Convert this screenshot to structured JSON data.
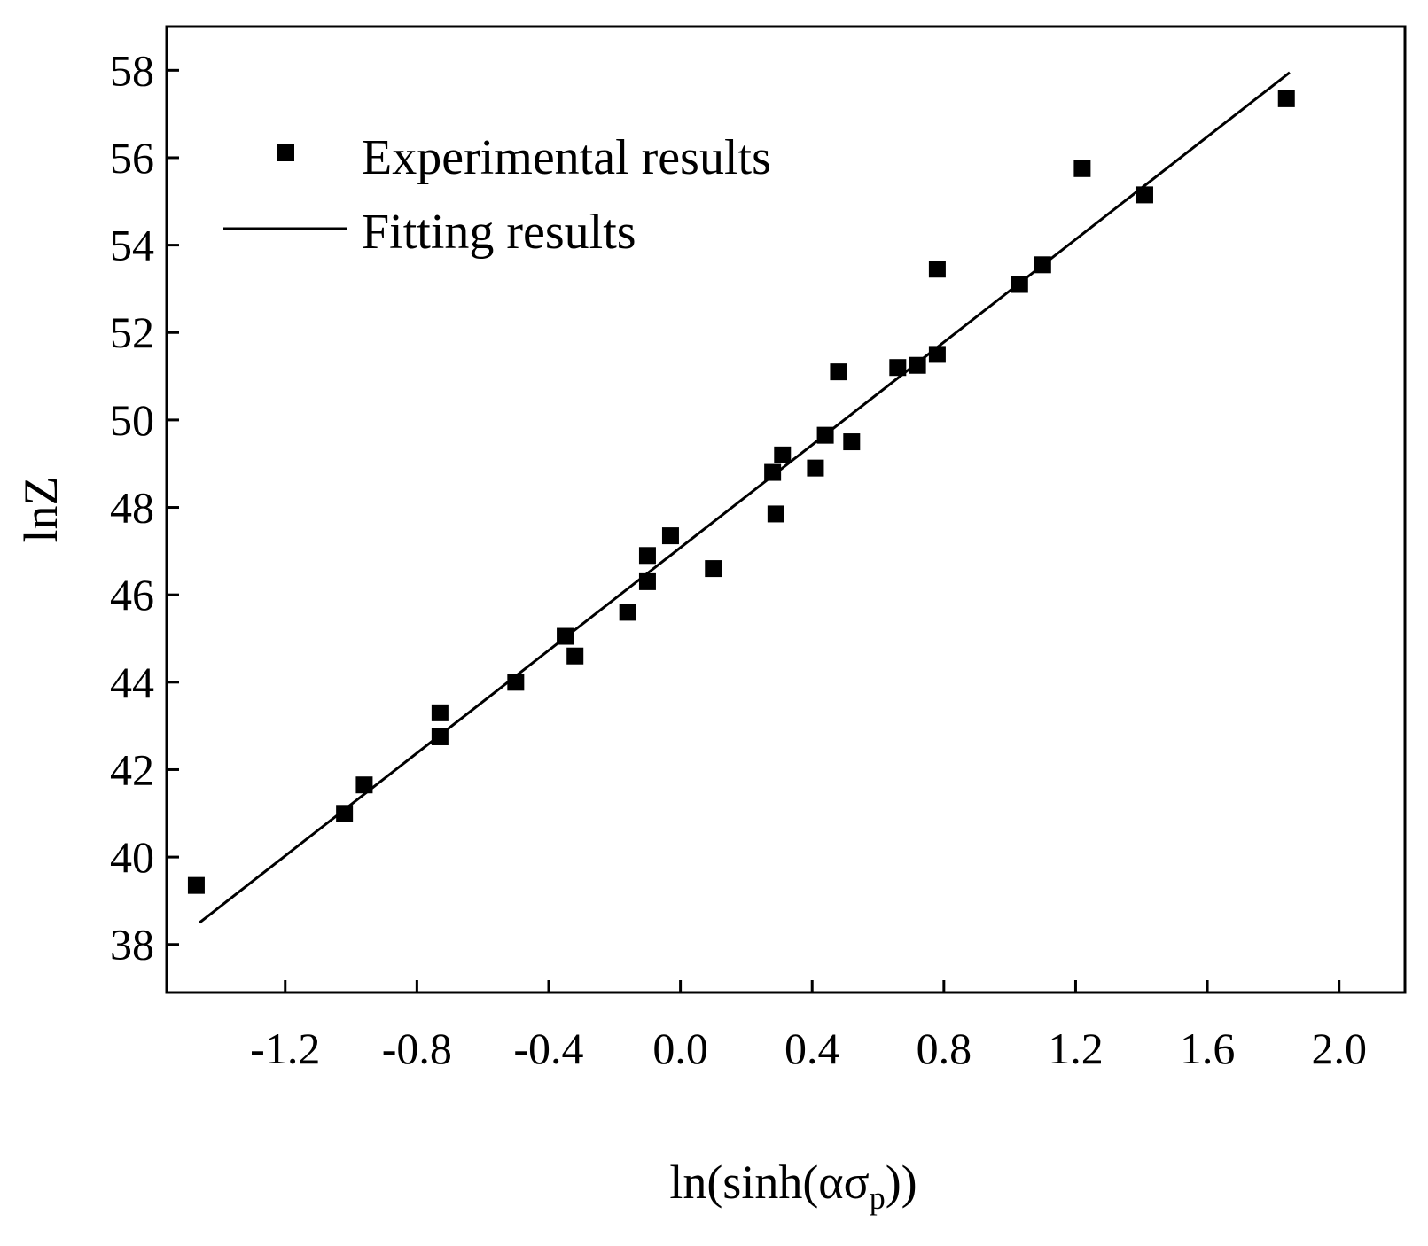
{
  "chart_data": {
    "type": "scatter",
    "title": "",
    "xlabel": "ln(sinh(ασ",
    "xlabel_subscript": "p",
    "xlabel_suffix": "))",
    "ylabel": "lnZ",
    "xlim": [
      -1.56,
      2.2
    ],
    "ylim": [
      36.9,
      59.0
    ],
    "x_ticks": [
      "-1.2",
      "-0.8",
      "-0.4",
      "0.0",
      "0.4",
      "0.8",
      "1.2",
      "1.6",
      "2.0"
    ],
    "y_ticks": [
      "38",
      "40",
      "42",
      "44",
      "46",
      "48",
      "50",
      "52",
      "54",
      "56",
      "58"
    ],
    "legend_position": "top-left",
    "series": [
      {
        "name": "Experimental results",
        "kind": "scatter",
        "marker": "square",
        "points": [
          [
            -1.47,
            39.35
          ],
          [
            -1.02,
            41.0
          ],
          [
            -0.96,
            41.65
          ],
          [
            -0.73,
            43.3
          ],
          [
            -0.73,
            42.75
          ],
          [
            -0.5,
            44.0
          ],
          [
            -0.35,
            45.05
          ],
          [
            -0.32,
            44.6
          ],
          [
            -0.16,
            45.6
          ],
          [
            -0.1,
            46.9
          ],
          [
            -0.1,
            46.3
          ],
          [
            -0.03,
            47.35
          ],
          [
            0.1,
            46.6
          ],
          [
            0.28,
            48.8
          ],
          [
            0.29,
            47.85
          ],
          [
            0.31,
            49.2
          ],
          [
            0.41,
            48.9
          ],
          [
            0.44,
            49.65
          ],
          [
            0.48,
            51.1
          ],
          [
            0.52,
            49.5
          ],
          [
            0.66,
            51.2
          ],
          [
            0.72,
            51.25
          ],
          [
            0.78,
            53.45
          ],
          [
            0.78,
            51.5
          ],
          [
            1.03,
            53.1
          ],
          [
            1.1,
            53.55
          ],
          [
            1.22,
            55.75
          ],
          [
            1.41,
            55.15
          ],
          [
            1.84,
            57.35
          ]
        ]
      },
      {
        "name": "Fitting results",
        "kind": "line",
        "points": [
          [
            -1.46,
            38.5
          ],
          [
            1.85,
            57.95
          ]
        ]
      }
    ]
  }
}
